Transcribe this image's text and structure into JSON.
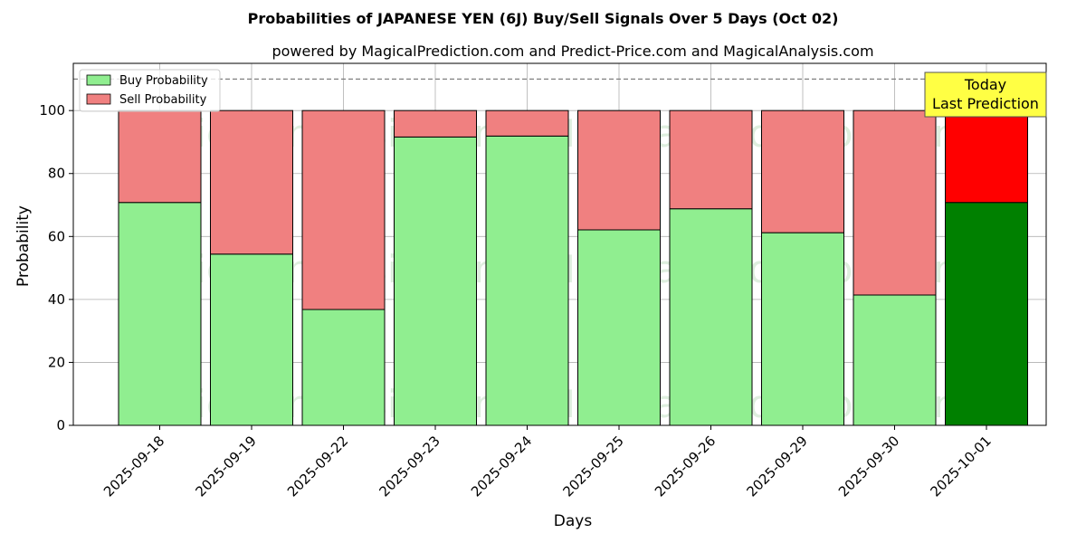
{
  "chart_data": {
    "type": "bar",
    "stacked": true,
    "title": "Probabilities of JAPANESE YEN (6J) Buy/Sell Signals Over 5 Days (Oct 02)",
    "subtitle": "powered by MagicalPrediction.com and Predict-Price.com and MagicalAnalysis.com",
    "xlabel": "Days",
    "ylabel": "Probability",
    "ylim": [
      0,
      115
    ],
    "yticks": [
      0,
      20,
      40,
      60,
      80,
      100
    ],
    "grid": true,
    "legend_position": "top-left",
    "reference_line": 110,
    "categories": [
      "2025-09-18",
      "2025-09-19",
      "2025-09-22",
      "2025-09-23",
      "2025-09-24",
      "2025-09-25",
      "2025-09-26",
      "2025-09-29",
      "2025-09-30",
      "2025-10-01"
    ],
    "series": [
      {
        "name": "Buy Probability",
        "values": [
          70.8,
          54.4,
          36.8,
          91.6,
          91.9,
          62.1,
          68.8,
          61.2,
          41.4,
          70.8
        ],
        "color": "#90ee90",
        "highlight_color": "#008000"
      },
      {
        "name": "Sell Probability",
        "values": [
          29.2,
          45.6,
          63.2,
          8.4,
          8.1,
          37.9,
          31.2,
          38.8,
          58.6,
          29.2
        ],
        "color": "#f08080",
        "highlight_color": "#ff0000"
      }
    ],
    "highlight_index": 9,
    "annotation": {
      "line1": "Today",
      "line2": "Last Prediction",
      "box_color": "#ffff44"
    },
    "watermarks": [
      "MagicalAnalysis.com",
      "MagicalPrediction.com"
    ]
  }
}
